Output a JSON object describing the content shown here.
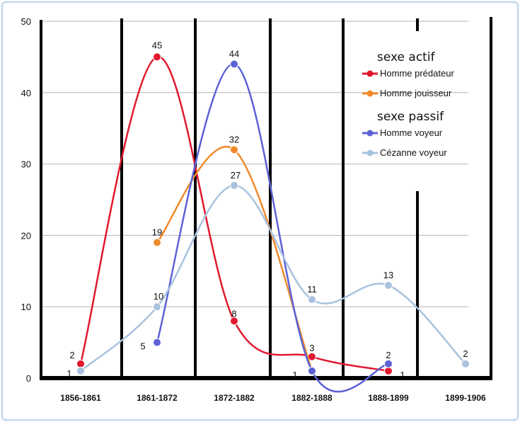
{
  "chart_data": {
    "type": "line",
    "smooth": true,
    "categories": [
      "1856-1861",
      "1861-1872",
      "1872-1882",
      "1882-1888",
      "1888-1899",
      "1899-1906"
    ],
    "ylim": [
      0,
      50
    ],
    "yticks": [
      0,
      10,
      20,
      30,
      40,
      50
    ],
    "grid": true,
    "legend_position": "right",
    "legend_groups": [
      {
        "heading": "sexe actif",
        "series": [
          "Homme prédateur",
          "Homme jouisseur"
        ]
      },
      {
        "heading": "sexe passif",
        "series": [
          "Homme voyeur",
          "Cézanne voyeur"
        ]
      }
    ],
    "series": [
      {
        "name": "Homme prédateur",
        "color": "#e0192e",
        "values": [
          2,
          45,
          8,
          3,
          1,
          null
        ],
        "labels": [
          "2",
          "45",
          "8",
          "3",
          "1",
          ""
        ]
      },
      {
        "name": "Homme jouisseur",
        "color": "#ef8a2c",
        "values": [
          null,
          19,
          32,
          1,
          null,
          null
        ],
        "labels": [
          "",
          "19",
          "32",
          "1",
          "",
          ""
        ]
      },
      {
        "name": "Homme voyeur",
        "color": "#5b62d6",
        "values": [
          null,
          5,
          44,
          1,
          2,
          null
        ],
        "labels": [
          "",
          "5",
          "44",
          "",
          "2",
          ""
        ]
      },
      {
        "name": "Cézanne voyeur",
        "color": "#a9c2de",
        "values": [
          1,
          10,
          27,
          11,
          13,
          2
        ],
        "labels": [
          "1",
          "10",
          "27",
          "11",
          "13",
          "2"
        ]
      }
    ]
  }
}
